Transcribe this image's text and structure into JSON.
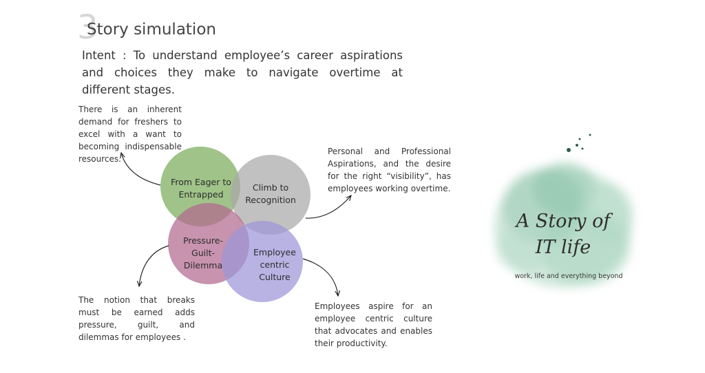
{
  "header": {
    "step_number": "3",
    "title": "Story simulation",
    "intent": "Intent : To understand employee’s career aspirations and choices they make to navigate overtime at different stages."
  },
  "circles": {
    "eager": {
      "label": "From Eager to Entrapped",
      "color": "#8fb974"
    },
    "recognition": {
      "label": "Climb to Recognition",
      "color": "#a9a9a9"
    },
    "pressure": {
      "label": "Pressure-Guilt-Dilemma",
      "color": "#b2698f"
    },
    "culture": {
      "label": "Employee centric Culture",
      "color": "#9c96d8"
    }
  },
  "notes": {
    "top_left": "There is an inherent demand for freshers to excel with a want to becoming indispensable resources.",
    "top_right": "Personal and Professional Aspirations, and the desire for the right “visibility”, has employees working overtime.",
    "bottom_left": "The notion that breaks must be earned adds pressure, guilt, and dilemmas for employees .",
    "bottom_right": "Employees aspire for an employee centric culture that advocates and enables their productivity."
  },
  "logo": {
    "line1": "A Story of",
    "line2": "IT life",
    "tagline": "work, life and everything beyond"
  }
}
